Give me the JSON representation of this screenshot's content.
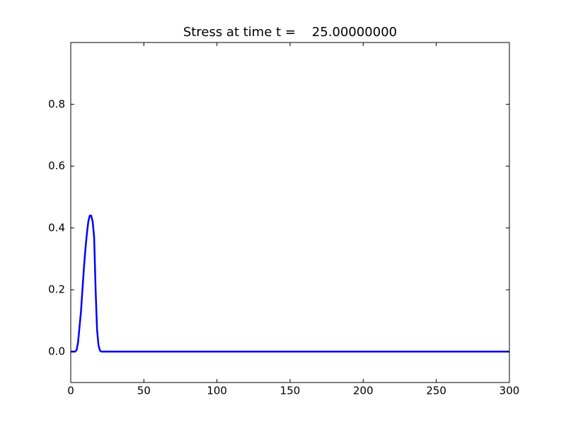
{
  "chart_data": {
    "type": "line",
    "title": "Stress at time t =    25.00000000",
    "x": [
      0,
      3,
      4,
      5,
      6,
      7,
      8,
      9,
      10,
      11,
      12,
      13,
      14,
      15,
      16,
      17,
      18,
      19,
      20,
      21,
      300
    ],
    "series": [
      {
        "color": "#0000ff",
        "values": [
          0,
          0,
          0.005,
          0.03,
          0.08,
          0.13,
          0.2,
          0.27,
          0.33,
          0.38,
          0.42,
          0.44,
          0.44,
          0.42,
          0.37,
          0.2,
          0.07,
          0.02,
          0.003,
          0,
          0
        ]
      }
    ],
    "xlim": [
      0,
      300
    ],
    "xticks": [
      0,
      50,
      100,
      150,
      200,
      250,
      300
    ],
    "ylim": [
      -0.1,
      1.0
    ],
    "yticks": [
      {
        "value": 0,
        "label": "0.0"
      },
      {
        "value": 0.2,
        "label": "0.2"
      },
      {
        "value": 0.4,
        "label": "0.4"
      },
      {
        "value": 0.6,
        "label": "0.6"
      },
      {
        "value": 0.8,
        "label": "0.8"
      }
    ],
    "grid": false
  }
}
